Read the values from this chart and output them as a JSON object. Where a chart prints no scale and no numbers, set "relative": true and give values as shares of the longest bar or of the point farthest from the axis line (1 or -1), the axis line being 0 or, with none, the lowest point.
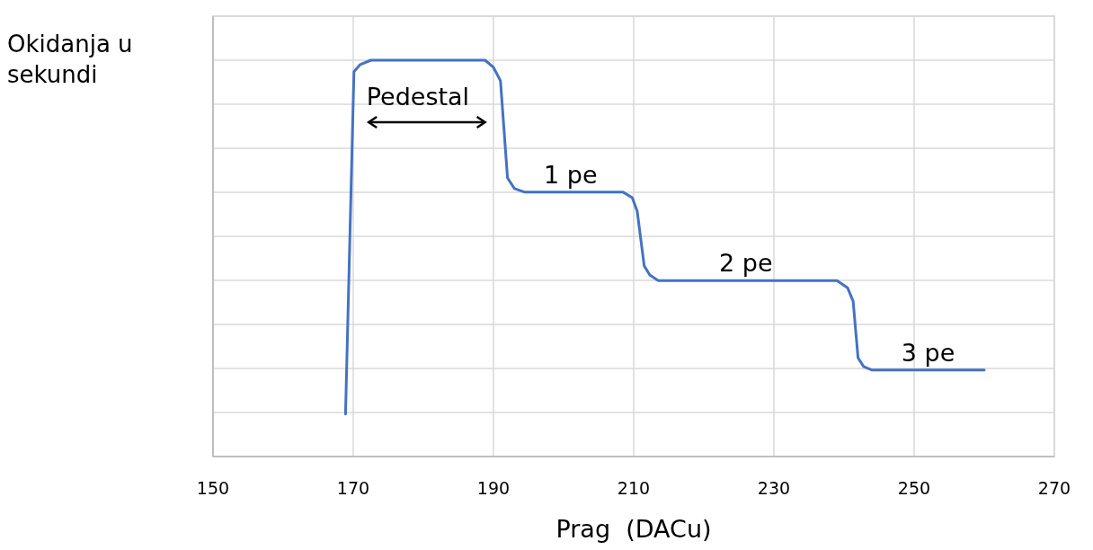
{
  "chart_data": {
    "type": "line",
    "relative": true,
    "ylabel": "Okidanja u\nsekundi",
    "xlabel": "Prag  (DACu)",
    "xlim": [
      150,
      270
    ],
    "xticks": [
      150,
      170,
      190,
      210,
      230,
      250,
      270
    ],
    "grid": true,
    "series": [
      {
        "color": "#4472c4",
        "x": [
          168.9,
          170.1,
          171,
          172.5,
          188.8,
          190,
          191,
          192,
          193,
          194.5,
          208.5,
          209.8,
          210.5,
          211.5,
          212.3,
          213.5,
          239,
          240.5,
          241.3,
          242,
          242.8,
          244,
          260
        ],
        "values": [
          0.107,
          0.971,
          0.989,
          1,
          1,
          0.982,
          0.948,
          0.703,
          0.676,
          0.667,
          0.667,
          0.653,
          0.619,
          0.481,
          0.458,
          0.444,
          0.444,
          0.426,
          0.392,
          0.249,
          0.227,
          0.218,
          0.218
        ]
      }
    ],
    "annotations": [
      {
        "text": "Pedestal",
        "x": 180.5,
        "y": 1
      },
      {
        "text": "1 pe",
        "x": 201,
        "y": 0.667
      },
      {
        "text": "2 pe",
        "x": 226,
        "y": 0.444
      },
      {
        "text": "3 pe",
        "x": 252,
        "y": 0.218
      }
    ]
  }
}
